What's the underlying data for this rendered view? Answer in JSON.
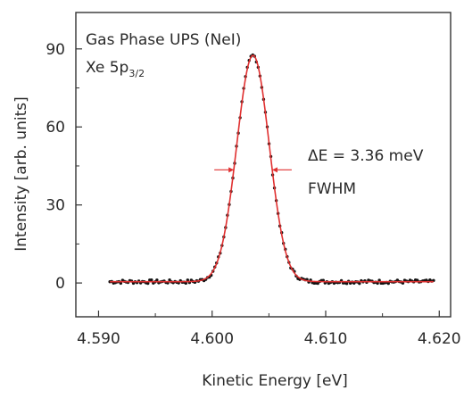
{
  "chart_data": {
    "type": "scatter",
    "title_line1": "Gas Phase UPS (NeI)",
    "title_line2_main": "Xe 5p",
    "title_line2_sub": "3/2",
    "xlabel": "Kinetic Energy [eV]",
    "ylabel": "Intensity [arb. units]",
    "xlim": [
      4.588,
      4.621
    ],
    "ylim": [
      -13,
      104
    ],
    "xticks": [
      4.59,
      4.6,
      4.61,
      4.62
    ],
    "xtick_labels": [
      "4.590",
      "4.600",
      "4.610",
      "4.620"
    ],
    "yticks": [
      0,
      30,
      60,
      90
    ],
    "ytick_labels": [
      "0",
      "30",
      "60",
      "90"
    ],
    "grid": false,
    "fit_peak": {
      "center": 4.6036,
      "amplitude": 87,
      "fwhm": 0.00336,
      "baseline": 0.5
    },
    "fwhm_annotation": {
      "text_delta": "ΔE = 3.36 meV",
      "text_fwhm": "FWHM",
      "y": 43.5
    },
    "colors": {
      "data": "#111111",
      "fit": "#e03030",
      "axis": "#333333"
    },
    "series": [
      {
        "kind": "points",
        "x_start": 4.591,
        "x_end": 4.6195,
        "count": 180
      },
      {
        "kind": "fit-line"
      }
    ]
  }
}
